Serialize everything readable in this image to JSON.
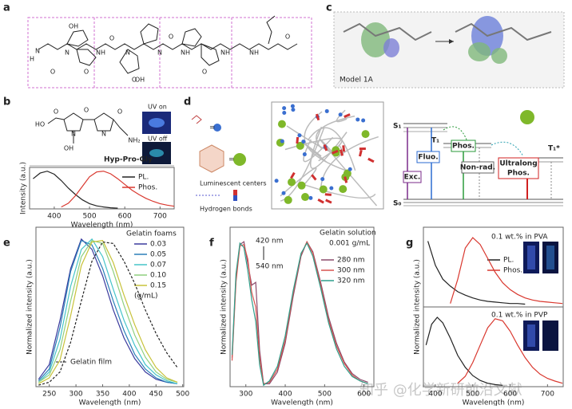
{
  "figure": {
    "panel_labels": [
      "a",
      "b",
      "c",
      "d",
      "e",
      "f",
      "g"
    ],
    "a": {
      "atoms": [
        "H",
        "N",
        "O",
        "OH",
        "N",
        "O",
        "NH",
        "O",
        "N",
        "O",
        "OH",
        "N",
        "O",
        "NH",
        "O",
        "NH",
        "NH",
        "O"
      ]
    },
    "b": {
      "name": "Hyp-Pro-Gly",
      "uv_on": "UV on",
      "uv_off": "UV off",
      "atoms": [
        "HO",
        "O",
        "N",
        "N",
        "O",
        "OH",
        "O",
        "NH₂"
      ]
    },
    "c": {
      "model": "Model 1A"
    },
    "d": {
      "luminescent": "Luminescent centers",
      "hbonds": "Hydrogen bonds",
      "levels": [
        "S₁",
        "T₁",
        "T₁*",
        "S₀"
      ],
      "processes": [
        "Exc.",
        "Fluo.",
        "Phos.",
        "Non-rad.",
        "Ultralong",
        "Phos."
      ]
    },
    "watermark": "知乎 @化学新研前沿文献"
  },
  "chart_data": [
    {
      "type": "line",
      "x_label": "Wavelength (nm)",
      "y_label": "Intensity (a.u.)",
      "xlim": [
        330,
        740
      ],
      "ylim": [
        0,
        1.1
      ],
      "xticks": [
        400,
        500,
        600,
        700
      ],
      "series": [
        {
          "name": "PL.",
          "color": "#222222",
          "x": [
            340,
            360,
            380,
            400,
            420,
            440,
            460,
            480,
            500,
            520,
            540,
            560,
            580
          ],
          "values": [
            0.8,
            0.95,
            1.0,
            0.92,
            0.75,
            0.55,
            0.38,
            0.24,
            0.14,
            0.08,
            0.05,
            0.03,
            0.02
          ]
        },
        {
          "name": "Phos.",
          "color": "#d9382f",
          "x": [
            420,
            440,
            460,
            480,
            500,
            520,
            540,
            560,
            580,
            600,
            620,
            640,
            660,
            680,
            700,
            720,
            740
          ],
          "values": [
            0.05,
            0.15,
            0.35,
            0.6,
            0.85,
            0.98,
            1.0,
            0.93,
            0.8,
            0.65,
            0.5,
            0.38,
            0.28,
            0.2,
            0.14,
            0.1,
            0.07
          ]
        }
      ]
    },
    {
      "type": "line",
      "x_label": "Wavelength (nm)",
      "y_label": "Normalized intensity (a.u.)",
      "xlim": [
        225,
        502
      ],
      "ylim": [
        0,
        1.08
      ],
      "xticks": [
        250,
        300,
        350,
        400,
        450,
        500
      ],
      "annotations": [
        "Gelatin foams",
        "(g/mL)",
        "Gelatin film"
      ],
      "series": [
        {
          "name": "0.03",
          "color": "#3b3b9e",
          "x": [
            230,
            250,
            270,
            290,
            310,
            330,
            350,
            370,
            390,
            410,
            430,
            450,
            470,
            490
          ],
          "values": [
            0.05,
            0.15,
            0.45,
            0.8,
            1.0,
            0.93,
            0.75,
            0.52,
            0.33,
            0.19,
            0.1,
            0.05,
            0.03,
            0.02
          ]
        },
        {
          "name": "0.05",
          "color": "#2a7fb8",
          "x": [
            230,
            250,
            270,
            290,
            310,
            330,
            350,
            370,
            390,
            410,
            430,
            450,
            470,
            490
          ],
          "values": [
            0.04,
            0.12,
            0.4,
            0.78,
            0.99,
            0.96,
            0.8,
            0.58,
            0.38,
            0.22,
            0.12,
            0.06,
            0.03,
            0.02
          ]
        },
        {
          "name": "0.07",
          "color": "#45c4c9",
          "x": [
            230,
            250,
            270,
            290,
            310,
            330,
            350,
            370,
            390,
            410,
            430,
            450,
            470,
            490
          ],
          "values": [
            0.03,
            0.1,
            0.32,
            0.68,
            0.93,
            1.0,
            0.88,
            0.66,
            0.45,
            0.28,
            0.15,
            0.08,
            0.04,
            0.02
          ]
        },
        {
          "name": "0.10",
          "color": "#8fcf7e",
          "x": [
            230,
            250,
            270,
            290,
            310,
            330,
            350,
            370,
            390,
            410,
            430,
            450,
            470,
            490
          ],
          "values": [
            0.03,
            0.08,
            0.25,
            0.58,
            0.88,
            0.99,
            0.97,
            0.78,
            0.55,
            0.35,
            0.2,
            0.1,
            0.05,
            0.03
          ]
        },
        {
          "name": "0.15",
          "color": "#c8c23a",
          "x": [
            230,
            250,
            270,
            290,
            310,
            330,
            350,
            370,
            390,
            410,
            430,
            450,
            470,
            490
          ],
          "values": [
            0.02,
            0.06,
            0.18,
            0.48,
            0.82,
            0.98,
            0.99,
            0.84,
            0.62,
            0.42,
            0.25,
            0.13,
            0.06,
            0.03
          ]
        },
        {
          "color": "#222222",
          "line_style": "dashed",
          "x": [
            230,
            250,
            270,
            290,
            310,
            330,
            350,
            370,
            390,
            410,
            430,
            450,
            470,
            490
          ],
          "values": [
            0.01,
            0.03,
            0.1,
            0.3,
            0.58,
            0.85,
            0.98,
            0.97,
            0.85,
            0.7,
            0.52,
            0.36,
            0.23,
            0.13
          ]
        }
      ]
    },
    {
      "type": "line",
      "x_label": "Wavelength (nm)",
      "y_label": "Normalized intensity (a.u.)",
      "xlim": [
        260,
        625
      ],
      "ylim": [
        0,
        1.1
      ],
      "xticks": [
        300,
        400,
        500,
        600
      ],
      "annotations": [
        "Gelatin solution",
        "0.001 g/mL",
        "420 nm",
        "540 nm"
      ],
      "series": [
        {
          "name": "280 nm",
          "color": "#8a4b6b",
          "x": [
            265,
            275,
            285,
            295,
            305,
            315,
            325,
            335,
            345,
            360,
            380,
            400,
            420,
            440,
            455,
            470,
            490,
            510,
            530,
            550,
            570,
            590,
            610
          ],
          "values": [
            0.2,
            0.75,
            0.98,
            1.0,
            0.85,
            0.7,
            0.72,
            0.25,
            0.02,
            0.02,
            0.1,
            0.3,
            0.62,
            0.9,
            1.0,
            0.93,
            0.72,
            0.48,
            0.3,
            0.17,
            0.09,
            0.05,
            0.03
          ]
        },
        {
          "name": "300 nm",
          "color": "#d9534f",
          "x": [
            265,
            275,
            285,
            295,
            305,
            315,
            325,
            335,
            345,
            360,
            380,
            400,
            420,
            440,
            455,
            470,
            490,
            510,
            530,
            550,
            570,
            590,
            610
          ],
          "values": [
            0.18,
            0.72,
            0.97,
            0.98,
            0.88,
            0.65,
            0.55,
            0.2,
            0.02,
            0.03,
            0.12,
            0.32,
            0.64,
            0.91,
            1.0,
            0.92,
            0.7,
            0.46,
            0.28,
            0.16,
            0.08,
            0.04,
            0.02
          ]
        },
        {
          "name": "320 nm",
          "color": "#2e9e8a",
          "x": [
            265,
            275,
            285,
            295,
            305,
            315,
            325,
            335,
            345,
            360,
            380,
            400,
            420,
            440,
            455,
            470,
            490,
            510,
            530,
            550,
            570,
            590,
            610
          ],
          "values": [
            0.22,
            0.78,
            0.99,
            0.96,
            0.8,
            0.6,
            0.45,
            0.15,
            0.01,
            0.04,
            0.14,
            0.35,
            0.66,
            0.92,
            0.99,
            0.9,
            0.68,
            0.44,
            0.26,
            0.14,
            0.07,
            0.04,
            0.02
          ]
        }
      ]
    },
    {
      "type": "line",
      "y_label": "Normalized intensity (a.u.)",
      "xlim": [
        368,
        742
      ],
      "ylim": [
        0,
        1.15
      ],
      "annotations": [
        "0.1 wt.% in PVA"
      ],
      "series": [
        {
          "name": "PL.",
          "color": "#222222",
          "x": [
            380,
            400,
            420,
            440,
            460,
            480,
            500,
            520,
            540,
            560,
            580,
            600,
            620,
            640
          ],
          "values": [
            0.95,
            0.6,
            0.4,
            0.3,
            0.22,
            0.17,
            0.13,
            0.1,
            0.08,
            0.07,
            0.06,
            0.05,
            0.05,
            0.04
          ]
        },
        {
          "name": "Phos.",
          "color": "#d9382f",
          "x": [
            440,
            460,
            480,
            500,
            520,
            540,
            560,
            580,
            600,
            620,
            640,
            660,
            680,
            700,
            720,
            740
          ],
          "values": [
            0.05,
            0.4,
            0.85,
            1.0,
            0.9,
            0.7,
            0.5,
            0.35,
            0.25,
            0.18,
            0.13,
            0.1,
            0.08,
            0.07,
            0.06,
            0.05
          ]
        }
      ]
    },
    {
      "type": "line",
      "x_label": "Wavelength (nm)",
      "xlim": [
        368,
        742
      ],
      "ylim": [
        0,
        1.15
      ],
      "xticks": [
        400,
        500,
        600,
        700
      ],
      "annotations": [
        "0.1 wt.% in PVP"
      ],
      "series": [
        {
          "color": "#222222",
          "x": [
            375,
            390,
            405,
            420,
            440,
            460,
            480,
            500,
            520,
            540,
            560,
            580
          ],
          "values": [
            0.6,
            0.9,
            1.0,
            0.92,
            0.7,
            0.45,
            0.28,
            0.16,
            0.09,
            0.05,
            0.03,
            0.02
          ]
        },
        {
          "color": "#d9382f",
          "x": [
            460,
            480,
            500,
            520,
            540,
            560,
            580,
            600,
            620,
            640,
            660,
            680,
            700,
            720,
            740
          ],
          "values": [
            0.05,
            0.15,
            0.35,
            0.6,
            0.85,
            0.98,
            0.95,
            0.8,
            0.6,
            0.42,
            0.28,
            0.18,
            0.12,
            0.08,
            0.05
          ]
        }
      ]
    }
  ]
}
